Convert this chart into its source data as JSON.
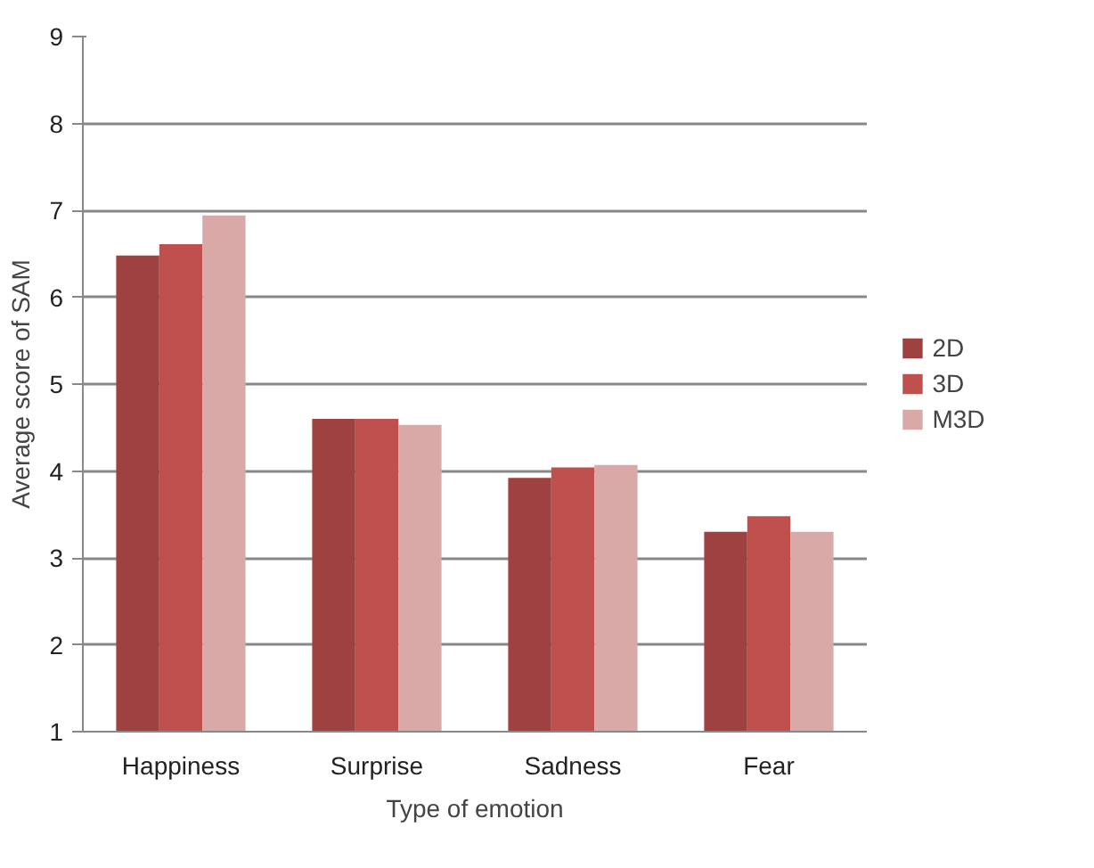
{
  "chart_data": {
    "type": "bar",
    "xlabel": "Type of emotion",
    "ylabel": "Average score of SAM",
    "categories": [
      "Happiness",
      "Surprise",
      "Sadness",
      "Fear"
    ],
    "series": [
      {
        "name": "2D",
        "color": "#9e4140",
        "values": [
          6.48,
          4.6,
          3.92,
          3.3
        ]
      },
      {
        "name": "3D",
        "color": "#c0504d",
        "values": [
          6.61,
          4.6,
          4.04,
          3.48
        ]
      },
      {
        "name": "M3D",
        "color": "#d9a9a8",
        "values": [
          6.94,
          4.53,
          4.07,
          3.3
        ]
      }
    ],
    "ylim": [
      1,
      9
    ],
    "yticks": [
      1,
      2,
      3,
      4,
      5,
      6,
      7,
      8,
      9
    ],
    "grid": "y",
    "legend": "right"
  }
}
